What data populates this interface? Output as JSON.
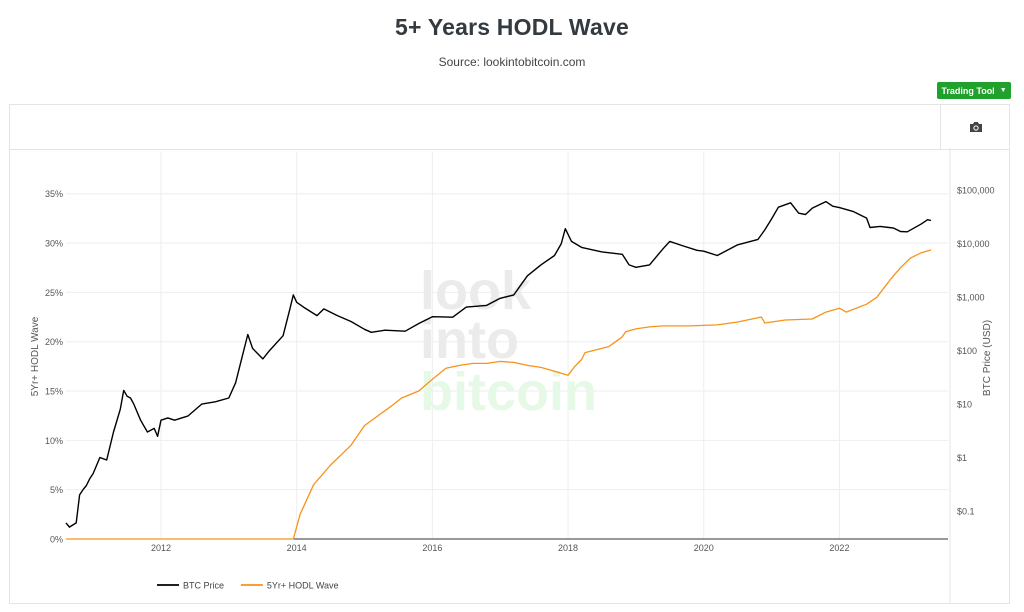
{
  "header": {
    "title": "5+ Years HODL Wave",
    "subtitle": "Source: lookintobitcoin.com"
  },
  "toolbar": {
    "trading_tool_label": "Trading Tool",
    "button_color": "#1fa12b",
    "camera_icon": "camera-icon"
  },
  "watermark": {
    "lines": [
      "look",
      "into",
      "bitcoin"
    ]
  },
  "chart_data": {
    "type": "line",
    "title": "5+ Years HODL Wave",
    "x_axis": {
      "range": [
        2010.6,
        2023.6
      ],
      "ticks": [
        "2012",
        "2014",
        "2016",
        "2018",
        "2020",
        "2022"
      ],
      "tick_values": [
        2012,
        2014,
        2016,
        2018,
        2020,
        2022
      ]
    },
    "y_left": {
      "label": "5Yr+ HODL Wave",
      "range": [
        0,
        37
      ],
      "ticks": [
        "0%",
        "5%",
        "10%",
        "15%",
        "20%",
        "25%",
        "30%",
        "35%"
      ],
      "tick_values": [
        0,
        5,
        10,
        15,
        20,
        25,
        30,
        35
      ]
    },
    "y_right": {
      "label": "BTC Price (USD)",
      "scale": "log",
      "range": [
        0.03,
        200000
      ],
      "ticks": [
        "$0.1",
        "$1",
        "$10",
        "$100",
        "$1,000",
        "$10,000",
        "$100,000"
      ],
      "tick_values": [
        0.1,
        1,
        10,
        100,
        1000,
        10000,
        100000
      ]
    },
    "grid": true,
    "legend_position": "bottom-left",
    "series": [
      {
        "name": "BTC Price",
        "axis": "right",
        "color": "#000000",
        "x": [
          2010.6,
          2010.65,
          2010.75,
          2010.8,
          2010.85,
          2010.9,
          2010.95,
          2011.0,
          2011.1,
          2011.2,
          2011.3,
          2011.4,
          2011.45,
          2011.5,
          2011.55,
          2011.6,
          2011.7,
          2011.8,
          2011.9,
          2011.95,
          2012.0,
          2012.1,
          2012.2,
          2012.4,
          2012.6,
          2012.8,
          2013.0,
          2013.1,
          2013.2,
          2013.28,
          2013.35,
          2013.5,
          2013.6,
          2013.8,
          2013.9,
          2013.95,
          2014.0,
          2014.1,
          2014.3,
          2014.4,
          2014.6,
          2014.8,
          2015.0,
          2015.1,
          2015.3,
          2015.6,
          2015.8,
          2016.0,
          2016.3,
          2016.5,
          2016.8,
          2017.0,
          2017.2,
          2017.4,
          2017.6,
          2017.8,
          2017.9,
          2017.96,
          2018.05,
          2018.2,
          2018.5,
          2018.8,
          2018.9,
          2019.0,
          2019.2,
          2019.4,
          2019.5,
          2019.7,
          2019.9,
          2020.0,
          2020.2,
          2020.5,
          2020.8,
          2020.9,
          2021.0,
          2021.1,
          2021.28,
          2021.4,
          2021.5,
          2021.6,
          2021.8,
          2021.9,
          2022.0,
          2022.2,
          2022.4,
          2022.45,
          2022.6,
          2022.8,
          2022.9,
          2023.0,
          2023.2,
          2023.3,
          2023.35
        ],
        "y": [
          0.06,
          0.05,
          0.06,
          0.2,
          0.25,
          0.3,
          0.4,
          0.5,
          1.0,
          0.9,
          3.0,
          8.0,
          18.0,
          14.0,
          13.0,
          10.0,
          5.0,
          3.0,
          3.5,
          2.5,
          5.0,
          5.5,
          5.0,
          6.0,
          10.0,
          11.0,
          13.0,
          25.0,
          80.0,
          200.0,
          110.0,
          70.0,
          100.0,
          190.0,
          600.0,
          1100.0,
          800.0,
          650.0,
          450.0,
          600.0,
          450.0,
          350.0,
          250.0,
          220.0,
          240.0,
          230.0,
          320.0,
          430.0,
          420.0,
          650.0,
          700.0,
          950.0,
          1100.0,
          2500.0,
          4000.0,
          6000.0,
          10000.0,
          19000.0,
          11000.0,
          8500.0,
          7000.0,
          6300.0,
          4000.0,
          3600.0,
          4000.0,
          8000.0,
          11000.0,
          9000.0,
          7500.0,
          7200.0,
          6000.0,
          9500.0,
          12000.0,
          18000.0,
          29000.0,
          48000.0,
          58000.0,
          37000.0,
          35000.0,
          46000.0,
          61000.0,
          50000.0,
          47000.0,
          40000.0,
          30000.0,
          20000.0,
          21000.0,
          19500.0,
          16800.0,
          16600.0,
          23000.0,
          28000.0,
          27000.0
        ]
      },
      {
        "name": "5Yr+ HODL Wave",
        "axis": "left",
        "color": "#f7931a",
        "x": [
          2010.6,
          2013.95,
          2014.05,
          2014.25,
          2014.5,
          2014.8,
          2015.0,
          2015.4,
          2015.55,
          2015.8,
          2016.0,
          2016.2,
          2016.4,
          2016.6,
          2016.8,
          2017.0,
          2017.2,
          2017.4,
          2017.6,
          2017.8,
          2018.0,
          2018.1,
          2018.2,
          2018.25,
          2018.6,
          2018.7,
          2018.8,
          2018.85,
          2019.0,
          2019.2,
          2019.4,
          2019.8,
          2020.2,
          2020.5,
          2020.85,
          2020.9,
          2021.2,
          2021.6,
          2021.8,
          2022.0,
          2022.1,
          2022.4,
          2022.55,
          2022.75,
          2022.9,
          2023.05,
          2023.2,
          2023.35
        ],
        "y": [
          0.0,
          0.0,
          2.5,
          5.5,
          7.5,
          9.5,
          11.5,
          13.5,
          14.3,
          15.0,
          16.2,
          17.3,
          17.6,
          17.8,
          17.8,
          18.0,
          17.9,
          17.6,
          17.4,
          17.0,
          16.6,
          17.5,
          18.2,
          18.9,
          19.5,
          20.0,
          20.5,
          21.0,
          21.3,
          21.5,
          21.6,
          21.6,
          21.7,
          22.0,
          22.5,
          21.9,
          22.2,
          22.3,
          23.0,
          23.4,
          23.0,
          23.8,
          24.5,
          26.3,
          27.5,
          28.5,
          29.0,
          29.3
        ]
      }
    ]
  }
}
